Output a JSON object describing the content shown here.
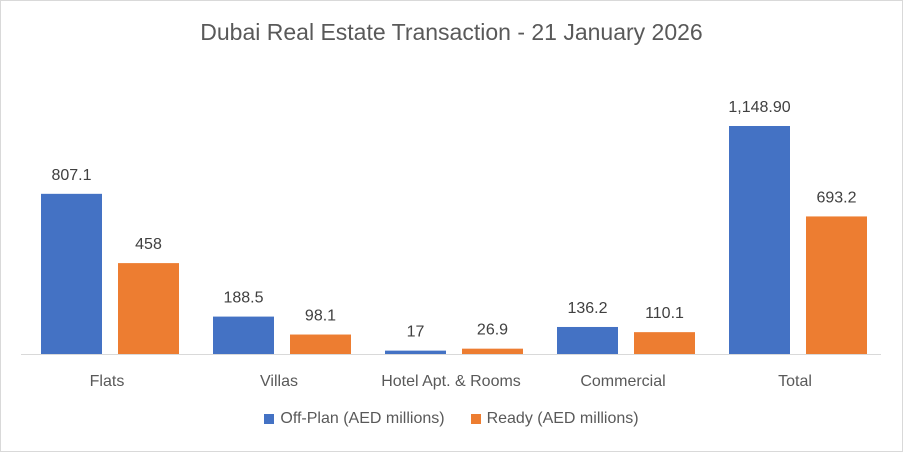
{
  "chart_data": {
    "type": "bar",
    "title": "Dubai Real Estate Transaction - 21 January 2026",
    "categories": [
      "Flats",
      "Villas",
      "Hotel Apt. & Rooms",
      "Commercial",
      "Total"
    ],
    "series": [
      {
        "name": "Off-Plan (AED millions)",
        "values": [
          807.1,
          188.5,
          17,
          136.2,
          1148.9
        ],
        "labels": [
          "807.1",
          "188.5",
          "17",
          "136.2",
          "1,148.90"
        ],
        "color": "#4472C4"
      },
      {
        "name": "Ready (AED millions)",
        "values": [
          458,
          98.1,
          26.9,
          110.1,
          693.2
        ],
        "labels": [
          "458",
          "98.1",
          "26.9",
          "110.1",
          "693.2"
        ],
        "color": "#ED7D31"
      }
    ],
    "ylim": [
      0,
      1148.9
    ],
    "legend": "bottom",
    "grid": false
  }
}
